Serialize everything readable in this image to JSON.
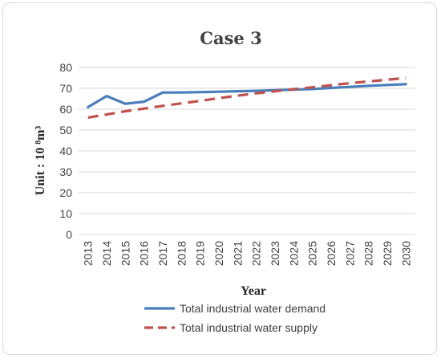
{
  "chart_data": {
    "type": "line",
    "title": "Case 3",
    "xlabel": "Year",
    "ylabel": "Unit : 10 ⁸m³",
    "categories": [
      "2013",
      "2014",
      "2015",
      "2016",
      "2017",
      "2018",
      "2019",
      "2020",
      "2021",
      "2022",
      "2023",
      "2024",
      "2025",
      "2026",
      "2027",
      "2028",
      "2029",
      "2030"
    ],
    "ylim": [
      0,
      80
    ],
    "yticks": [
      0,
      10,
      20,
      30,
      40,
      50,
      60,
      70,
      80
    ],
    "grid": true,
    "legend": "bottom",
    "series": [
      {
        "name": "Total industrial water demand",
        "color": "#4a7ebb",
        "style": "solid",
        "values": [
          61.0,
          66.3,
          62.6,
          63.6,
          68.0,
          68.0,
          68.2,
          68.4,
          68.6,
          68.8,
          69.1,
          69.4,
          69.7,
          70.2,
          70.7,
          71.2,
          71.6,
          72.0
        ]
      },
      {
        "name": "Total industrial water supply",
        "color": "#c0504d",
        "style": "dashed",
        "values": [
          56.0,
          57.5,
          59.0,
          60.3,
          61.6,
          62.8,
          64.0,
          65.3,
          66.5,
          67.6,
          68.6,
          69.6,
          70.5,
          71.5,
          72.5,
          73.3,
          74.1,
          75.0
        ]
      }
    ]
  }
}
